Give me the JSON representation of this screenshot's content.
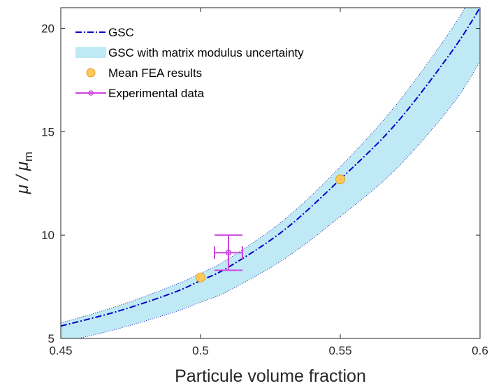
{
  "chart_data": {
    "type": "line",
    "xlabel": "Particule volume fraction",
    "ylabel_main": "μ / μ",
    "ylabel_sub": "m",
    "xlim": [
      0.45,
      0.6
    ],
    "ylim": [
      5,
      21
    ],
    "x_ticks": [
      "0.45",
      "0.5",
      "0.55",
      "0.6"
    ],
    "x_tick_values": [
      0.45,
      0.5,
      0.55,
      0.6
    ],
    "y_ticks": [
      "5",
      "10",
      "15",
      "20"
    ],
    "y_tick_values": [
      5,
      10,
      15,
      20
    ],
    "grid": false,
    "legend_position": "top-left",
    "series": [
      {
        "name": "GSC",
        "kind": "line",
        "style": "dash-dot",
        "color": "#0000CC",
        "x": [
          0.45,
          0.47,
          0.49,
          0.5,
          0.51,
          0.53,
          0.55,
          0.57,
          0.59,
          0.6
        ],
        "y": [
          5.6,
          6.3,
          7.2,
          7.8,
          8.45,
          10.25,
          12.7,
          15.4,
          18.9,
          21.0
        ]
      },
      {
        "name": "GSC with matrix modulus uncertainty",
        "kind": "band",
        "color": "#BFEAF5",
        "x": [
          0.45,
          0.47,
          0.49,
          0.5,
          0.51,
          0.53,
          0.55,
          0.57,
          0.59,
          0.6
        ],
        "y_upper": [
          5.75,
          6.55,
          7.55,
          8.15,
          8.85,
          10.75,
          13.3,
          16.3,
          20.0,
          22.3
        ],
        "y_lower": [
          4.8,
          5.45,
          6.25,
          6.75,
          7.3,
          8.85,
          10.9,
          13.2,
          16.3,
          18.4
        ]
      },
      {
        "name": "Mean FEA results",
        "kind": "scatter",
        "color": "#FFC85A",
        "x": [
          0.5,
          0.55
        ],
        "y": [
          7.95,
          12.7
        ]
      },
      {
        "name": "Experimental data",
        "kind": "errorbar",
        "color": "#CC44DD",
        "x": [
          0.51
        ],
        "y": [
          9.15
        ],
        "y_err": [
          0.85
        ],
        "x_err": [
          0.005
        ]
      }
    ]
  }
}
